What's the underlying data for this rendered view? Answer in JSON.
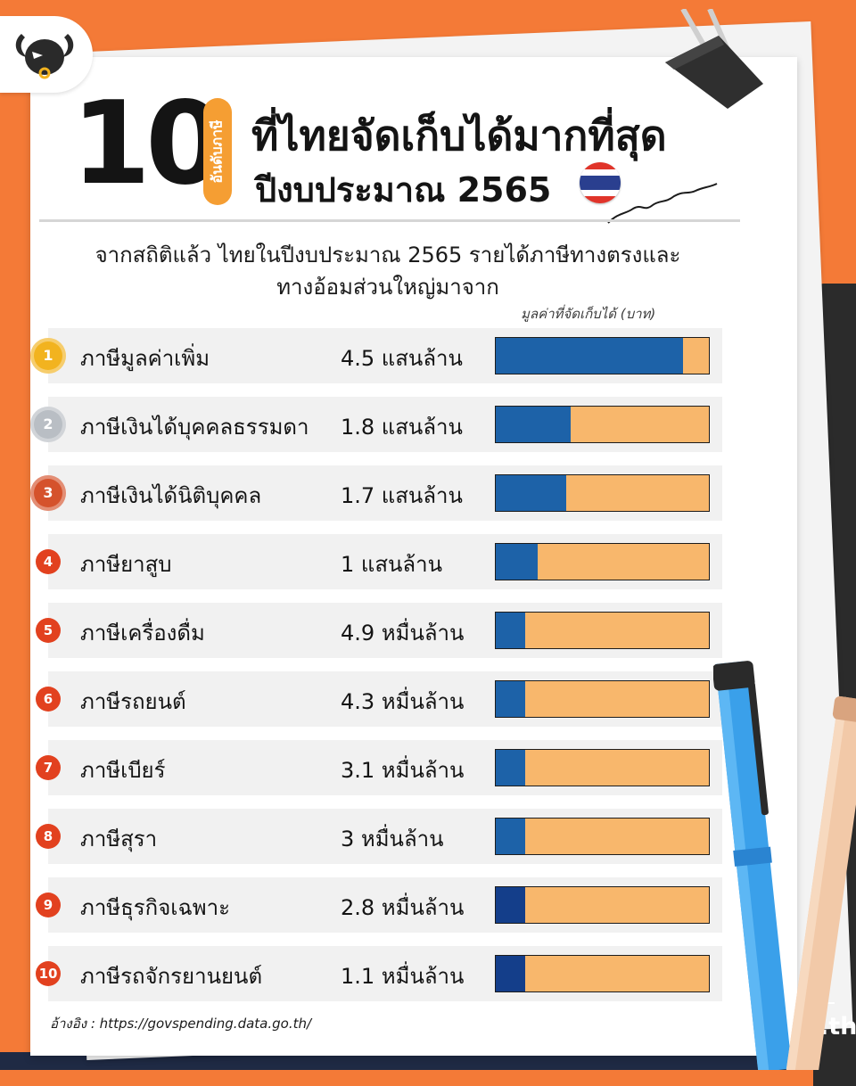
{
  "header": {
    "number": "10",
    "rank_tag": "อันดับภาษี",
    "title_line1": "ที่ไทยจัดเก็บได้มากที่สุด",
    "title_line2": "ปีงบประมาณ 2565"
  },
  "subtitle": {
    "line1": "จากสถิติแล้ว ไทยในปีงบประมาณ 2565 รายได้ภาษีทางตรงและ",
    "line2": "ทางอ้อมส่วนใหญ่มาจาก"
  },
  "unit_label": "มูลค่าที่จัดเก็บได้ (บาท)",
  "colors": {
    "gold": "#f2b31f",
    "silver": "#b9bec4",
    "bronze": "#d5522c",
    "rank_red": "#e2411f",
    "bar_fill": "#1d62a8",
    "bar_fill_dark": "#143e8a",
    "bar_rest": "#f8b76c",
    "accent_orange": "#f47a37"
  },
  "chart_data": {
    "type": "bar",
    "orientation": "horizontal",
    "value_unit": "ล้านบาท",
    "xlim": [
      0,
      500000
    ],
    "grid": false,
    "categories": [
      "ภาษีมูลค่าเพิ่ม",
      "ภาษีเงินได้บุคคลธรรมดา",
      "ภาษีเงินได้นิติบุคคล",
      "ภาษียาสูบ",
      "ภาษีเครื่องดื่ม",
      "ภาษีรถยนต์",
      "ภาษีเบียร์",
      "ภาษีสุรา",
      "ภาษีธุรกิจเฉพาะ",
      "ภาษีรถจักรยานยนต์"
    ],
    "values": [
      450000,
      180000,
      170000,
      100000,
      49000,
      43000,
      31000,
      30000,
      28000,
      11000
    ],
    "value_labels": [
      "4.5 แสนล้าน",
      "1.8 แสนล้าน",
      "1.7 แสนล้าน",
      "1 แสนล้าน",
      "4.9 หมื่นล้าน",
      "4.3 หมื่นล้าน",
      "3.1 หมื่นล้าน",
      "3 หมื่นล้าน",
      "2.8 หมื่นล้าน",
      "1.1 หมื่นล้าน"
    ],
    "ranks": [
      "1",
      "2",
      "3",
      "4",
      "5",
      "6",
      "7",
      "8",
      "9",
      "10"
    ]
  },
  "source": "อ้างอิง : https://govspending.data.go.th/",
  "brand": "moneybuffalo.in.th",
  "icons": [
    "buffalo-logo-icon",
    "binder-clip-icon",
    "thai-flag-icon",
    "pen-icon"
  ]
}
